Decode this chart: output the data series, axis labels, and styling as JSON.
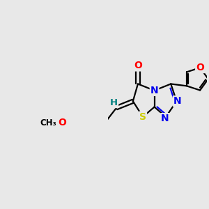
{
  "bg_color": "#e8e8e8",
  "atom_colors": {
    "C": "#000000",
    "N": "#0000ee",
    "O": "#ff0000",
    "S": "#cccc00",
    "H": "#008080"
  },
  "bond_color": "#000000",
  "bond_width": 1.6,
  "figsize": [
    3.0,
    3.0
  ],
  "dpi": 100,
  "xlim": [
    -2.8,
    3.2
  ],
  "ylim": [
    -3.2,
    2.5
  ]
}
